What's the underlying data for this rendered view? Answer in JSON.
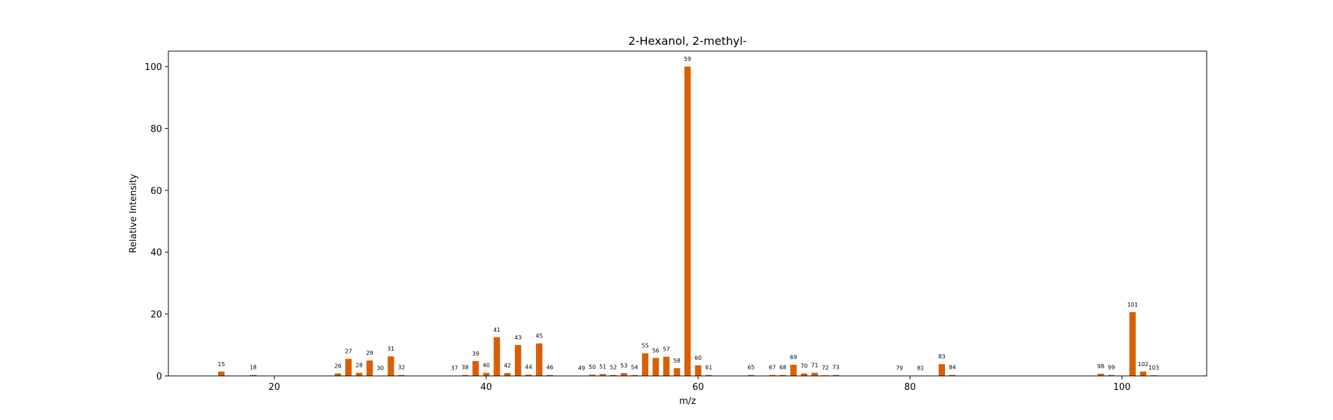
{
  "chart_data": {
    "type": "bar",
    "title": "2-Hexanol, 2-methyl-",
    "xlabel": "m/z",
    "ylabel": "Relative Intensity",
    "xlim": [
      10,
      108
    ],
    "ylim": [
      0,
      105
    ],
    "xticks": [
      20,
      40,
      60,
      80,
      100
    ],
    "yticks": [
      0,
      20,
      40,
      60,
      80,
      100
    ],
    "grid": false,
    "bar_color": "#d95f02",
    "x": [
      15,
      18,
      26,
      27,
      28,
      29,
      30,
      31,
      32,
      37,
      38,
      39,
      40,
      41,
      42,
      43,
      44,
      45,
      46,
      49,
      50,
      51,
      52,
      53,
      54,
      55,
      56,
      57,
      58,
      59,
      60,
      61,
      65,
      67,
      68,
      69,
      70,
      71,
      72,
      73,
      79,
      81,
      83,
      84,
      98,
      99,
      101,
      102,
      103
    ],
    "values": [
      1.4,
      0.3,
      0.8,
      5.5,
      1.0,
      5.0,
      0.1,
      6.3,
      0.3,
      0.1,
      0.3,
      4.8,
      1.0,
      12.5,
      0.9,
      10.0,
      0.4,
      10.5,
      0.3,
      0.1,
      0.4,
      0.6,
      0.3,
      0.9,
      0.3,
      7.3,
      5.8,
      6.2,
      2.5,
      100,
      3.4,
      0.3,
      0.3,
      0.3,
      0.3,
      3.6,
      0.8,
      1.0,
      0.2,
      0.3,
      0.1,
      0.1,
      3.8,
      0.3,
      0.7,
      0.3,
      20.6,
      1.4,
      0.2
    ],
    "labels": [
      "15",
      "18",
      "26",
      "27",
      "28",
      "29",
      "30",
      "31",
      "32",
      "37",
      "38",
      "39",
      "40",
      "41",
      "42",
      "43",
      "44",
      "45",
      "46",
      "49",
      "50",
      "51",
      "52",
      "53",
      "54",
      "55",
      "56",
      "57",
      "58",
      "59",
      "60",
      "61",
      "65",
      "67",
      "68",
      "69",
      "70",
      "71",
      "72",
      "73",
      "79",
      "81",
      "83",
      "84",
      "98",
      "99",
      "101",
      "102",
      "103"
    ]
  }
}
